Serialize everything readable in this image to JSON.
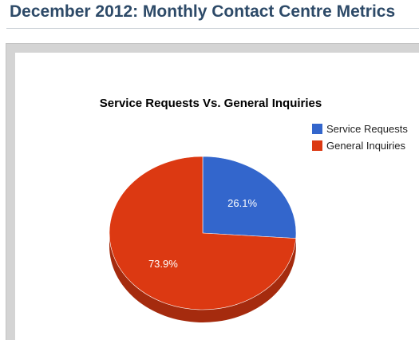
{
  "page": {
    "title": "December 2012: Monthly Contact Centre Metrics"
  },
  "chart_data": {
    "type": "pie",
    "title": "Service Requests Vs. General Inquiries",
    "legend_position": "top-right",
    "three_d": true,
    "slices": [
      {
        "label": "Service Requests",
        "value": 26.1,
        "display": "26.1%",
        "color": "#3366cc"
      },
      {
        "label": "General Inquiries",
        "value": 73.9,
        "display": "73.9%",
        "color": "#dc3912"
      }
    ]
  }
}
